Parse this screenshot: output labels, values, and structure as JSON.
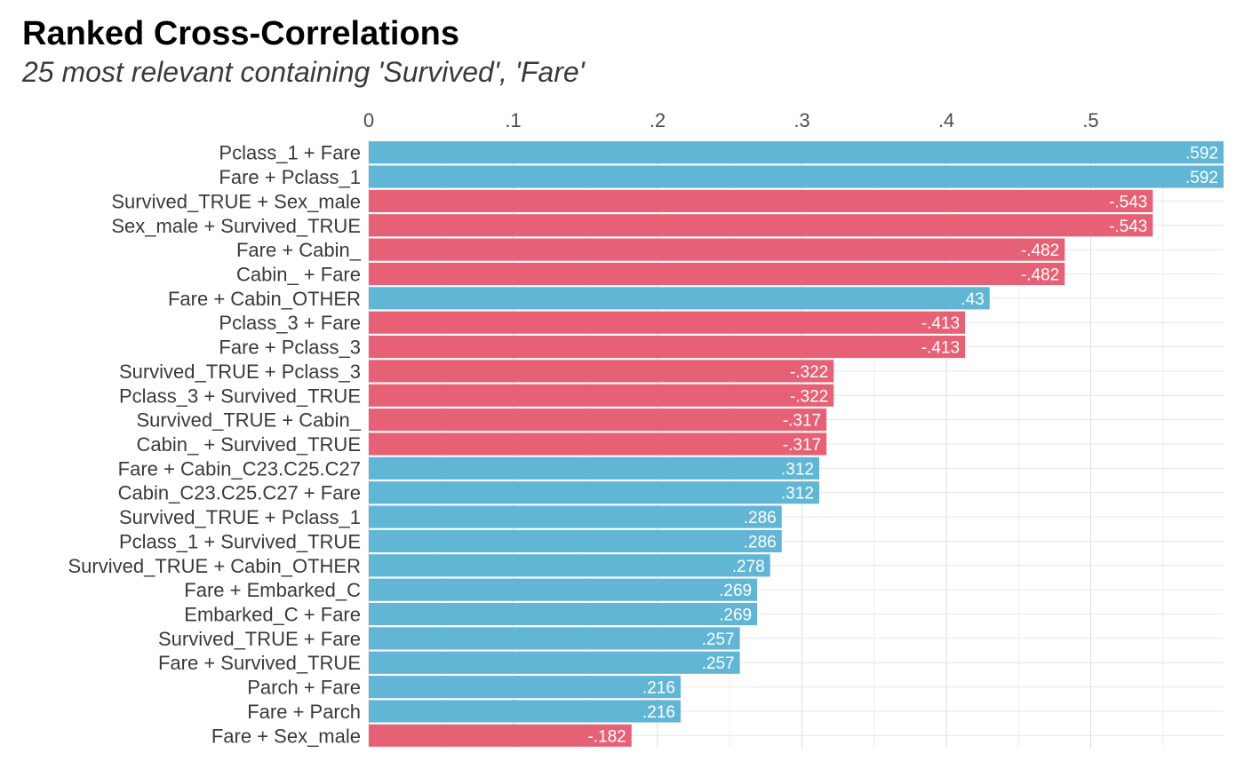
{
  "chart_data": {
    "type": "bar",
    "orientation": "horizontal",
    "title": "Ranked Cross-Correlations",
    "subtitle": "25 most relevant containing 'Survived', 'Fare'",
    "xlabel": "",
    "ylabel": "",
    "xlim": [
      0,
      0.592
    ],
    "x_ticks": [
      0,
      0.1,
      0.2,
      0.3,
      0.4,
      0.5
    ],
    "x_tick_labels": [
      "0",
      ".1",
      ".2",
      ".3",
      ".4",
      ".5"
    ],
    "x_axis_position": "top",
    "grid": true,
    "colors": {
      "positive": "#62b6d5",
      "negative": "#e66176"
    },
    "categories": [
      "Pclass_1 + Fare",
      "Fare + Pclass_1",
      "Survived_TRUE + Sex_male",
      "Sex_male + Survived_TRUE",
      "Fare + Cabin_",
      "Cabin_ + Fare",
      "Fare + Cabin_OTHER",
      "Pclass_3 + Fare",
      "Fare + Pclass_3",
      "Survived_TRUE + Pclass_3",
      "Pclass_3 + Survived_TRUE",
      "Survived_TRUE + Cabin_",
      "Cabin_ + Survived_TRUE",
      "Fare + Cabin_C23.C25.C27",
      "Cabin_C23.C25.C27 + Fare",
      "Survived_TRUE + Pclass_1",
      "Pclass_1 + Survived_TRUE",
      "Survived_TRUE + Cabin_OTHER",
      "Fare + Embarked_C",
      "Embarked_C + Fare",
      "Survived_TRUE + Fare",
      "Fare + Survived_TRUE",
      "Parch + Fare",
      "Fare + Parch",
      "Fare + Sex_male"
    ],
    "values": [
      0.592,
      0.592,
      -0.543,
      -0.543,
      -0.482,
      -0.482,
      0.43,
      -0.413,
      -0.413,
      -0.322,
      -0.322,
      -0.317,
      -0.317,
      0.312,
      0.312,
      0.286,
      0.286,
      0.278,
      0.269,
      0.269,
      0.257,
      0.257,
      0.216,
      0.216,
      -0.182
    ],
    "value_labels": [
      ".592",
      ".592",
      "-.543",
      "-.543",
      "-.482",
      "-.482",
      ".43",
      "-.413",
      "-.413",
      "-.322",
      "-.322",
      "-.317",
      "-.317",
      ".312",
      ".312",
      ".286",
      ".286",
      ".278",
      ".269",
      ".269",
      ".257",
      ".257",
      ".216",
      ".216",
      "-.182"
    ]
  }
}
